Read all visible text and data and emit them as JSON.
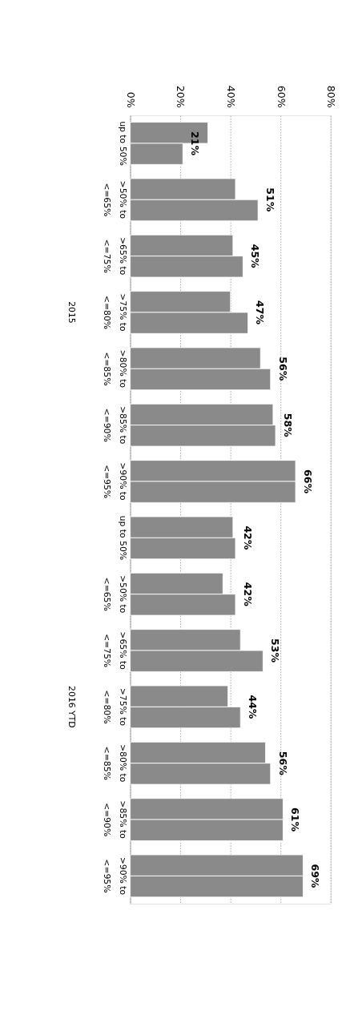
{
  "chart_data": {
    "type": "bar",
    "orientation": "horizontal",
    "categories": [
      "up to 50%",
      ">50% to <=65%",
      ">65% to <=75%",
      ">75% to <=80%",
      ">80% to <=85%",
      ">85% to <=90%",
      ">90% to <=95%",
      "up to 50%",
      ">50% to <=65%",
      ">65% to <=75%",
      ">75% to <=80%",
      ">80% to <=85%",
      ">85% to <=90%",
      ">90% to <=95%"
    ],
    "series": [
      {
        "color": "#8a8a8a",
        "values": [
          31,
          42,
          41,
          40,
          52,
          57,
          66,
          41,
          37,
          44,
          39,
          54,
          61,
          69
        ]
      },
      {
        "color": "#8a8a8a",
        "values": [
          21,
          51,
          45,
          47,
          56,
          58,
          66,
          42,
          42,
          53,
          44,
          56,
          61,
          69
        ],
        "value_labels": [
          "21%",
          "51%",
          "45%",
          "47%",
          "56%",
          "58%",
          "66%",
          "42%",
          "42%",
          "53%",
          "44%",
          "56%",
          "61%",
          "69%"
        ]
      }
    ],
    "xlim": [
      0,
      80
    ],
    "xticks": [
      {
        "value": 0,
        "label": "0%"
      },
      {
        "value": 20,
        "label": "20%"
      },
      {
        "value": 40,
        "label": "40%"
      },
      {
        "value": 60,
        "label": "60%"
      },
      {
        "value": 80,
        "label": "80%"
      }
    ],
    "grid": "x",
    "legend": false,
    "annotations": [
      "2015",
      "2016 YTD"
    ]
  }
}
